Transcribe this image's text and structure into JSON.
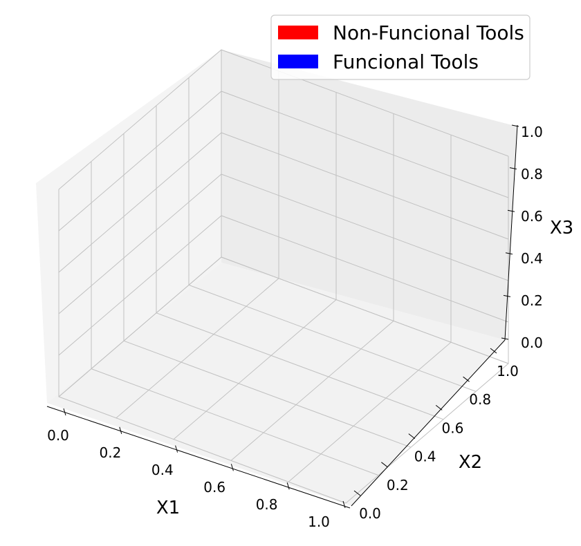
{
  "chart_data": {
    "type": "scatter",
    "projection": "3d",
    "title": "",
    "xlabel": "X1",
    "ylabel": "X2",
    "zlabel": "X3",
    "xlim": [
      0,
      1
    ],
    "ylim": [
      0,
      1
    ],
    "zlim": [
      0,
      1
    ],
    "x_ticks": [
      "0.0",
      "0.2",
      "0.4",
      "0.6",
      "0.8",
      "1.0"
    ],
    "y_ticks": [
      "0.0",
      "0.2",
      "0.4",
      "0.6",
      "0.8",
      "1.0"
    ],
    "z_ticks": [
      "0.0",
      "0.2",
      "0.4",
      "0.6",
      "0.8",
      "1.0"
    ],
    "grid": true,
    "legend_position": "top-right",
    "series": [
      {
        "name": "Non-Funcional Tools",
        "color": "#ff0000",
        "points": []
      },
      {
        "name": "Funcional Tools",
        "color": "#0000ff",
        "points": []
      }
    ]
  },
  "colors": {
    "pane_left": "#f4f4f4",
    "pane_back": "#ececec",
    "pane_floor": "#f2f2f2",
    "grid": "#c0c0c0",
    "axis_line": "#000000"
  }
}
